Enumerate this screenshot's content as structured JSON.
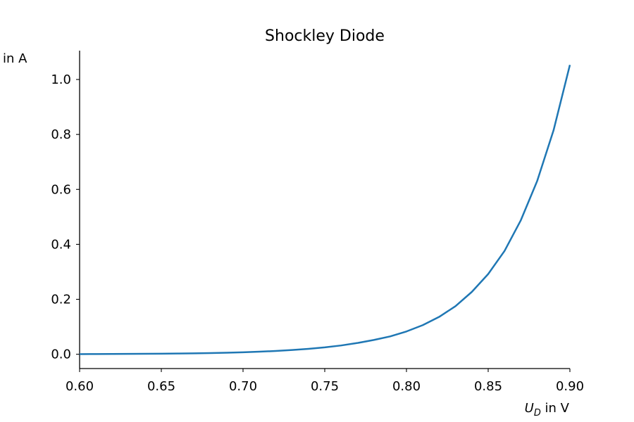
{
  "chart_data": {
    "type": "line",
    "title": "Shockley Diode",
    "xlabel_var": "U",
    "xlabel_sub": "D",
    "xlabel_unit": " in V",
    "ylabel": "in A",
    "xlim": [
      0.6,
      0.9
    ],
    "ylim": [
      -0.052,
      1.105
    ],
    "xticks": [
      0.6,
      0.65,
      0.7,
      0.75,
      0.8,
      0.85,
      0.9
    ],
    "xtick_labels": [
      "0.60",
      "0.65",
      "0.70",
      "0.75",
      "0.80",
      "0.85",
      "0.90"
    ],
    "yticks": [
      0.0,
      0.2,
      0.4,
      0.6,
      0.8,
      1.0
    ],
    "ytick_labels": [
      "0.0",
      "0.2",
      "0.4",
      "0.6",
      "0.8",
      "1.0"
    ],
    "grid": false,
    "series": [
      {
        "color": "#1f77b4",
        "x": [
          0.6,
          0.61,
          0.62,
          0.63,
          0.64,
          0.65,
          0.66,
          0.67,
          0.68,
          0.69,
          0.7,
          0.71,
          0.72,
          0.73,
          0.74,
          0.75,
          0.76,
          0.77,
          0.78,
          0.79,
          0.8,
          0.81,
          0.82,
          0.83,
          0.84,
          0.85,
          0.86,
          0.87,
          0.88,
          0.89,
          0.9
        ],
        "y": [
          0.0006,
          0.0008,
          0.001,
          0.0013,
          0.0016,
          0.0021,
          0.0027,
          0.0035,
          0.0044,
          0.0057,
          0.0073,
          0.0094,
          0.012,
          0.0154,
          0.0197,
          0.025,
          0.032,
          0.041,
          0.052,
          0.065,
          0.083,
          0.106,
          0.136,
          0.175,
          0.227,
          0.292,
          0.376,
          0.488,
          0.631,
          0.815,
          1.053
        ]
      }
    ]
  }
}
